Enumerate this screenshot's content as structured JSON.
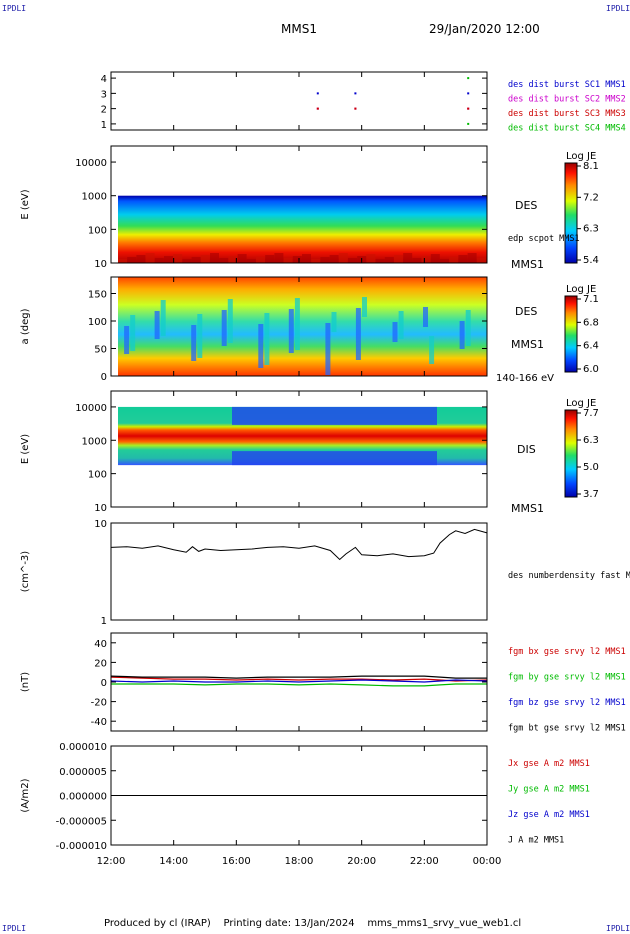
{
  "header": {
    "corner_tl": "IPDLI",
    "corner_tr": "IPDLI",
    "corner_bl": "IPDLI",
    "corner_br": "IPDLI",
    "spacecraft": "MMS1",
    "datetime": "29/Jan/2020 12:00"
  },
  "footer": {
    "produced": "Produced by cl (IRAP)",
    "printing_date": "Printing date: 13/Jan/2024",
    "filename": "mms_mms1_srvy_vue_web1.cl"
  },
  "colors": {
    "mms1": "#0000cc",
    "mms2": "#cc00cc",
    "mms3": "#cc0000",
    "mms4": "#00bb00",
    "x": "#cc0000",
    "y": "#00bb00",
    "z": "#0000cc",
    "t": "#000000"
  },
  "chart_data": [
    {
      "type": "scatter",
      "panel": "burst-availability",
      "ylim": [
        0.6,
        4.4
      ],
      "yticks": [
        "1",
        "2",
        "3",
        "4"
      ],
      "series": [
        {
          "name": "des dist burst SC1 MMS1",
          "color": "#0000cc",
          "points": [
            [
              18.6,
              3.0
            ],
            [
              19.8,
              3.0
            ],
            [
              23.4,
              3.0
            ]
          ]
        },
        {
          "name": "des dist burst SC2 MMS2",
          "color": "#cc00cc",
          "points": [
            [
              18.6,
              2.0
            ],
            [
              19.8,
              2.0
            ],
            [
              23.4,
              2.0
            ]
          ]
        },
        {
          "name": "des dist burst SC3 MMS3",
          "color": "#cc0000",
          "points": [
            [
              18.6,
              2.0
            ],
            [
              19.8,
              2.0
            ],
            [
              23.4,
              2.0
            ]
          ]
        },
        {
          "name": "des dist burst SC4 MMS4",
          "color": "#00bb00",
          "points": [
            [
              23.4,
              4.0
            ],
            [
              23.4,
              1.0
            ]
          ]
        }
      ]
    },
    {
      "type": "heatmap",
      "panel": "des-energy-spectrogram",
      "ylabel": "E (eV)",
      "yscale": "log",
      "ylim": [
        10,
        30000
      ],
      "yticks": [
        "10000",
        "1000",
        "100",
        "10"
      ],
      "label": "DES",
      "annotation": "edp scpot MMS1",
      "sublabel": "MMS1",
      "colorbar": {
        "title": "Log JE",
        "max": "8.1",
        "mid1": "7.2",
        "mid2": "6.3",
        "min": "5.4"
      }
    },
    {
      "type": "heatmap",
      "panel": "des-pitch-angle",
      "ylabel": "a (deg)",
      "ylim": [
        0,
        180
      ],
      "yticks": [
        "150",
        "100",
        "50",
        "0"
      ],
      "label": "DES",
      "sublabel": "MMS1",
      "energy_range": "140-166 eV",
      "colorbar": {
        "title": "Log JE",
        "max": "7.1",
        "mid1": "6.8",
        "mid2": "6.4",
        "min": "6.0"
      }
    },
    {
      "type": "heatmap",
      "panel": "dis-energy-spectrogram",
      "ylabel": "E (eV)",
      "yscale": "log",
      "ylim": [
        10,
        30000
      ],
      "yticks": [
        "10000",
        "1000",
        "100",
        "10"
      ],
      "label": "DIS",
      "sublabel": "MMS1",
      "colorbar": {
        "title": "Log JE",
        "max": "7.7",
        "mid1": "6.3",
        "mid2": "5.0",
        "min": "3.7"
      }
    },
    {
      "type": "line",
      "panel": "number-density",
      "ylabel": "(cm^-3)",
      "yscale": "log",
      "ylim": [
        1,
        10
      ],
      "yticks": [
        "10",
        "1"
      ],
      "series": [
        {
          "name": "des numberdensity fast M",
          "color": "#000000",
          "x": [
            12.0,
            12.5,
            13.0,
            13.5,
            14.0,
            14.4,
            14.6,
            14.8,
            15.0,
            15.5,
            16.0,
            16.5,
            17.0,
            17.5,
            18.0,
            18.5,
            19.0,
            19.3,
            19.5,
            19.8,
            20.0,
            20.5,
            21.0,
            21.5,
            22.0,
            22.3,
            22.5,
            22.8,
            23.0,
            23.3,
            23.6,
            24.0
          ],
          "y": [
            5.6,
            5.7,
            5.5,
            5.8,
            5.3,
            5.0,
            5.7,
            5.1,
            5.4,
            5.2,
            5.3,
            5.4,
            5.6,
            5.7,
            5.5,
            5.8,
            5.2,
            4.2,
            4.8,
            5.6,
            4.7,
            4.6,
            4.8,
            4.5,
            4.6,
            4.9,
            6.2,
            7.6,
            8.3,
            7.8,
            8.6,
            7.9
          ]
        }
      ]
    },
    {
      "type": "line",
      "panel": "magnetic-field",
      "ylabel": "(nT)",
      "ylim": [
        -50,
        50
      ],
      "yticks": [
        "40",
        "20",
        "0",
        "-20",
        "-40"
      ],
      "x": [
        12,
        13,
        14,
        15,
        16,
        17,
        18,
        19,
        20,
        21,
        22,
        22.5,
        23,
        24
      ],
      "series": [
        {
          "name": "fgm bx gse srvy l2 MMS1",
          "color": "#cc0000",
          "values": [
            5,
            4,
            3,
            3,
            2,
            3,
            2,
            3,
            3,
            2,
            3,
            2,
            1,
            2
          ]
        },
        {
          "name": "fgm by gse srvy l2 MMS1",
          "color": "#00bb00",
          "values": [
            -2,
            -2,
            -2,
            -3,
            -2,
            -2,
            -3,
            -2,
            -3,
            -4,
            -4,
            -3,
            -2,
            -2
          ]
        },
        {
          "name": "fgm bz gse srvy l2 MMS1",
          "color": "#0000cc",
          "values": [
            1,
            0,
            1,
            0,
            0,
            1,
            0,
            1,
            2,
            1,
            0,
            1,
            2,
            1
          ]
        },
        {
          "name": "fgm bt gse srvy l2 MMS1",
          "color": "#000000",
          "values": [
            6,
            5,
            5,
            5,
            4,
            5,
            5,
            5,
            6,
            6,
            6,
            5,
            4,
            4
          ]
        }
      ]
    },
    {
      "type": "line",
      "panel": "current-density",
      "ylabel": "(A/m2)",
      "ylim": [
        -1e-05,
        1e-05
      ],
      "yticks": [
        "0.000010",
        "0.000005",
        "0.000000",
        "-0.000005",
        "-0.000010"
      ],
      "x": [
        12,
        14,
        16,
        18,
        20,
        22,
        24
      ],
      "series": [
        {
          "name": "Jx gse A m2 MMS1",
          "color": "#cc0000",
          "values": [
            0,
            0,
            0,
            0,
            0,
            0,
            0
          ]
        },
        {
          "name": "Jy gse A m2 MMS1",
          "color": "#00bb00",
          "values": [
            0,
            0,
            0,
            0,
            0,
            0,
            0
          ]
        },
        {
          "name": "Jz gse A m2 MMS1",
          "color": "#0000cc",
          "values": [
            0,
            0,
            0,
            0,
            0,
            0,
            0
          ]
        },
        {
          "name": "J A m2 MMS1",
          "color": "#000000",
          "values": [
            0,
            0,
            0,
            0,
            0,
            0,
            0
          ]
        }
      ]
    }
  ],
  "xaxis": {
    "range": [
      12,
      24
    ],
    "tick_values": [
      12,
      14,
      16,
      18,
      20,
      22,
      24
    ],
    "tick_labels": [
      "12:00",
      "14:00",
      "16:00",
      "18:00",
      "20:00",
      "22:00",
      "00:00"
    ]
  }
}
